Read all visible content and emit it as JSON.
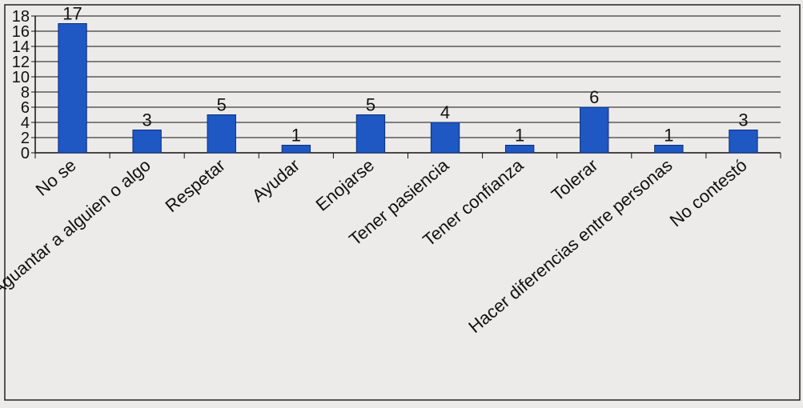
{
  "chart_data": {
    "type": "bar",
    "categories": [
      "No se",
      "Aguantar a alguien o algo",
      "Respetar",
      "Ayudar",
      "Enojarse",
      "Tener pasiencia",
      "Tener confianza",
      "Tolerar",
      "Hacer diferencias entre personas",
      "No contestó"
    ],
    "values": [
      17,
      3,
      5,
      1,
      5,
      4,
      1,
      6,
      1,
      3
    ],
    "data_labels": [
      "17",
      "3",
      "5",
      "1",
      "5",
      "4",
      "1",
      "6",
      "1",
      "3"
    ],
    "yticks": [
      0,
      2,
      4,
      6,
      8,
      10,
      12,
      14,
      16,
      18
    ],
    "ytick_labels": [
      "0",
      "2",
      "4",
      "6",
      "8",
      "10",
      "12",
      "14",
      "16",
      "18"
    ],
    "ylim": [
      0,
      18
    ],
    "grid": true,
    "legend": "none",
    "title": "",
    "xlabel": "",
    "ylabel": "",
    "colors": {
      "bar": "#1f57c3",
      "bar_edge": "#0c2f7a",
      "grid": "#111111",
      "text": "#111111",
      "background": "#ecebea"
    }
  }
}
